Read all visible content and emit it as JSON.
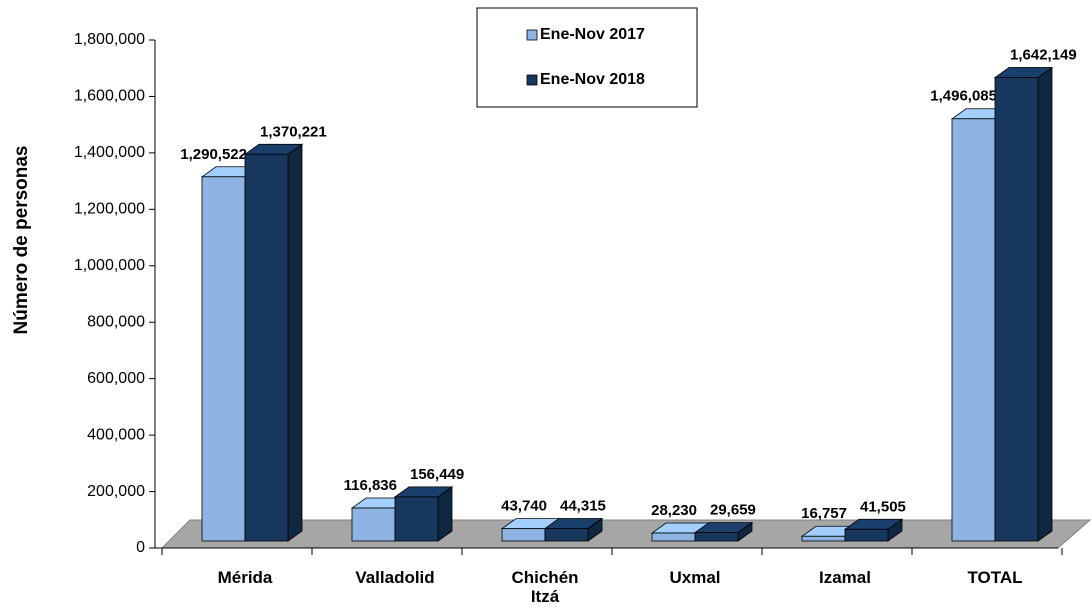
{
  "chart_data": {
    "type": "bar3d",
    "y_label": "Número de personas",
    "categories": [
      "Mérida",
      "Valladolid",
      "Chichén Itzá",
      "Uxmal",
      "Izamal",
      "TOTAL"
    ],
    "series": [
      {
        "name": "Ene-Nov 2017",
        "color": "#8db4e2",
        "values": [
          1290522,
          116836,
          43740,
          28230,
          16757,
          1496085
        ],
        "value_labels": [
          "1,290,522",
          "116,836",
          "43,740",
          "28,230",
          "16,757",
          "1,496,085"
        ]
      },
      {
        "name": "Ene-Nov 2018",
        "color": "#17375e",
        "values": [
          1370221,
          156449,
          44315,
          29659,
          41505,
          1642149
        ],
        "value_labels": [
          "1,370,221",
          "156,449",
          "44,315",
          "29,659",
          "41,505",
          "1,642,149"
        ]
      }
    ],
    "ylim": [
      0,
      1800000
    ],
    "yticks": [
      0,
      {
        "value": 200000,
        "label": "200,000"
      },
      {
        "value": 400000,
        "label": "400,000"
      },
      {
        "value": 600000,
        "label": "600,000"
      },
      {
        "value": 800000,
        "label": "800,000"
      },
      {
        "value": 1000000,
        "label": "1,000,000"
      },
      {
        "value": 1200000,
        "label": "1,200,000"
      },
      {
        "value": 1400000,
        "label": "1,400,000"
      },
      {
        "value": 1600000,
        "label": "1,600,000"
      },
      {
        "value": 1800000,
        "label": "1,800,000"
      }
    ],
    "legend": "top"
  }
}
